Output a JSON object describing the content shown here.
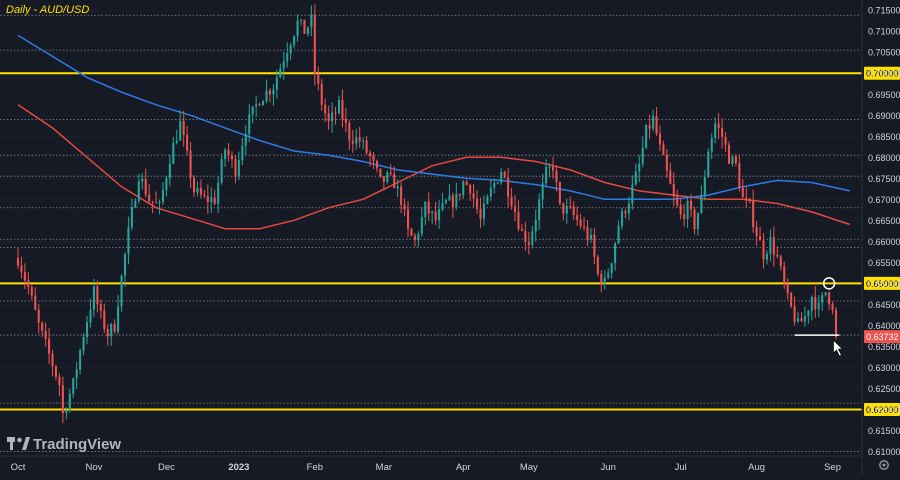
{
  "chart_data": {
    "type": "candlestick",
    "title": "Daily - AUD/USD",
    "symbol": "AUD/USD",
    "interval": "Daily",
    "watermark": "TradingView",
    "ylim": [
      0.6075,
      0.716
    ],
    "y_ticks": [
      "0.71500",
      "0.71000",
      "0.70500",
      "0.70000",
      "0.69500",
      "0.69000",
      "0.68500",
      "0.68000",
      "0.67500",
      "0.67000",
      "0.66500",
      "0.66000",
      "0.65500",
      "0.65000",
      "0.64500",
      "0.64000",
      "0.63500",
      "0.63000",
      "0.62500",
      "0.62000",
      "0.61500",
      "0.61000"
    ],
    "x_labels": [
      {
        "label": "Oct",
        "t": 0
      },
      {
        "label": "Nov",
        "t": 22
      },
      {
        "label": "Dec",
        "t": 43
      },
      {
        "label": "2023",
        "t": 64
      },
      {
        "label": "Feb",
        "t": 86
      },
      {
        "label": "Mar",
        "t": 106
      },
      {
        "label": "Apr",
        "t": 129
      },
      {
        "label": "May",
        "t": 148
      },
      {
        "label": "Jun",
        "t": 171
      },
      {
        "label": "Jul",
        "t": 192
      },
      {
        "label": "Aug",
        "t": 214
      },
      {
        "label": "Sep",
        "t": 236
      }
    ],
    "last_price": "0.63732",
    "key_levels": [
      {
        "price": 0.7,
        "label": "0.70000",
        "style": "major"
      },
      {
        "price": 0.65,
        "label": "0.65000",
        "style": "major"
      },
      {
        "price": 0.62,
        "label": "0.62000",
        "style": "major"
      },
      {
        "price": 0.7138,
        "style": "minor"
      },
      {
        "price": 0.7055,
        "style": "minor"
      },
      {
        "price": 0.689,
        "style": "minor"
      },
      {
        "price": 0.6805,
        "style": "minor"
      },
      {
        "price": 0.6755,
        "style": "minor"
      },
      {
        "price": 0.668,
        "style": "minor"
      },
      {
        "price": 0.6605,
        "style": "minor"
      },
      {
        "price": 0.6585,
        "style": "minor"
      },
      {
        "price": 0.6458,
        "style": "minor"
      },
      {
        "price": 0.6377,
        "style": "minor"
      },
      {
        "price": 0.6215,
        "style": "minor"
      },
      {
        "price": 0.61,
        "style": "minor"
      }
    ],
    "anchors": [
      {
        "t": 0,
        "p": 0.656
      },
      {
        "t": 3,
        "p": 0.649
      },
      {
        "t": 6,
        "p": 0.64
      },
      {
        "t": 9,
        "p": 0.633
      },
      {
        "t": 12,
        "p": 0.626
      },
      {
        "t": 13,
        "p": 0.619
      },
      {
        "t": 16,
        "p": 0.626
      },
      {
        "t": 19,
        "p": 0.638
      },
      {
        "t": 22,
        "p": 0.648
      },
      {
        "t": 24,
        "p": 0.642
      },
      {
        "t": 26,
        "p": 0.638
      },
      {
        "t": 28,
        "p": 0.64
      },
      {
        "t": 29,
        "p": 0.646
      },
      {
        "t": 32,
        "p": 0.662
      },
      {
        "t": 35,
        "p": 0.676
      },
      {
        "t": 38,
        "p": 0.67
      },
      {
        "t": 41,
        "p": 0.668
      },
      {
        "t": 44,
        "p": 0.68
      },
      {
        "t": 47,
        "p": 0.688
      },
      {
        "t": 51,
        "p": 0.672
      },
      {
        "t": 54,
        "p": 0.67
      },
      {
        "t": 57,
        "p": 0.67
      },
      {
        "t": 60,
        "p": 0.682
      },
      {
        "t": 63,
        "p": 0.677
      },
      {
        "t": 66,
        "p": 0.687
      },
      {
        "t": 70,
        "p": 0.694
      },
      {
        "t": 74,
        "p": 0.697
      },
      {
        "t": 78,
        "p": 0.706
      },
      {
        "t": 81,
        "p": 0.712
      },
      {
        "t": 83,
        "p": 0.71
      },
      {
        "t": 85,
        "p": 0.7125
      },
      {
        "t": 86,
        "p": 0.7
      },
      {
        "t": 88,
        "p": 0.693
      },
      {
        "t": 90,
        "p": 0.688
      },
      {
        "t": 93,
        "p": 0.692
      },
      {
        "t": 96,
        "p": 0.685
      },
      {
        "t": 99,
        "p": 0.684
      },
      {
        "t": 102,
        "p": 0.68
      },
      {
        "t": 105,
        "p": 0.674
      },
      {
        "t": 107,
        "p": 0.675
      },
      {
        "t": 109,
        "p": 0.674
      },
      {
        "t": 111,
        "p": 0.67
      },
      {
        "t": 113,
        "p": 0.662
      },
      {
        "t": 115,
        "p": 0.66
      },
      {
        "t": 118,
        "p": 0.668
      },
      {
        "t": 121,
        "p": 0.665
      },
      {
        "t": 124,
        "p": 0.669
      },
      {
        "t": 127,
        "p": 0.67
      },
      {
        "t": 129,
        "p": 0.674
      },
      {
        "t": 131,
        "p": 0.673
      },
      {
        "t": 134,
        "p": 0.665
      },
      {
        "t": 137,
        "p": 0.672
      },
      {
        "t": 140,
        "p": 0.677
      },
      {
        "t": 143,
        "p": 0.67
      },
      {
        "t": 146,
        "p": 0.662
      },
      {
        "t": 148,
        "p": 0.66
      },
      {
        "t": 150,
        "p": 0.666
      },
      {
        "t": 153,
        "p": 0.676
      },
      {
        "t": 155,
        "p": 0.678
      },
      {
        "t": 157,
        "p": 0.668
      },
      {
        "t": 160,
        "p": 0.667
      },
      {
        "t": 163,
        "p": 0.664
      },
      {
        "t": 166,
        "p": 0.66
      },
      {
        "t": 168,
        "p": 0.652
      },
      {
        "t": 170,
        "p": 0.65
      },
      {
        "t": 172,
        "p": 0.656
      },
      {
        "t": 174,
        "p": 0.664
      },
      {
        "t": 177,
        "p": 0.67
      },
      {
        "t": 180,
        "p": 0.678
      },
      {
        "t": 182,
        "p": 0.686
      },
      {
        "t": 184,
        "p": 0.689
      },
      {
        "t": 186,
        "p": 0.682
      },
      {
        "t": 188,
        "p": 0.676
      },
      {
        "t": 190,
        "p": 0.67
      },
      {
        "t": 192,
        "p": 0.666
      },
      {
        "t": 194,
        "p": 0.668
      },
      {
        "t": 196,
        "p": 0.664
      },
      {
        "t": 198,
        "p": 0.67
      },
      {
        "t": 200,
        "p": 0.682
      },
      {
        "t": 202,
        "p": 0.688
      },
      {
        "t": 204,
        "p": 0.685
      },
      {
        "t": 206,
        "p": 0.68
      },
      {
        "t": 208,
        "p": 0.678
      },
      {
        "t": 210,
        "p": 0.67
      },
      {
        "t": 212,
        "p": 0.668
      },
      {
        "t": 214,
        "p": 0.662
      },
      {
        "t": 216,
        "p": 0.657
      },
      {
        "t": 218,
        "p": 0.66
      },
      {
        "t": 220,
        "p": 0.656
      },
      {
        "t": 223,
        "p": 0.646
      },
      {
        "t": 226,
        "p": 0.64
      },
      {
        "t": 228,
        "p": 0.642
      },
      {
        "t": 230,
        "p": 0.647
      },
      {
        "t": 232,
        "p": 0.644
      },
      {
        "t": 234,
        "p": 0.648
      },
      {
        "t": 236,
        "p": 0.645
      },
      {
        "t": 237,
        "p": 0.6373
      }
    ],
    "ma_red": [
      {
        "t": 0,
        "p": 0.6925
      },
      {
        "t": 10,
        "p": 0.687
      },
      {
        "t": 20,
        "p": 0.68
      },
      {
        "t": 30,
        "p": 0.673
      },
      {
        "t": 40,
        "p": 0.668
      },
      {
        "t": 50,
        "p": 0.6655
      },
      {
        "t": 60,
        "p": 0.663
      },
      {
        "t": 70,
        "p": 0.663
      },
      {
        "t": 80,
        "p": 0.665
      },
      {
        "t": 90,
        "p": 0.668
      },
      {
        "t": 100,
        "p": 0.67
      },
      {
        "t": 110,
        "p": 0.674
      },
      {
        "t": 120,
        "p": 0.678
      },
      {
        "t": 130,
        "p": 0.68
      },
      {
        "t": 140,
        "p": 0.68
      },
      {
        "t": 150,
        "p": 0.679
      },
      {
        "t": 160,
        "p": 0.677
      },
      {
        "t": 170,
        "p": 0.674
      },
      {
        "t": 180,
        "p": 0.672
      },
      {
        "t": 190,
        "p": 0.671
      },
      {
        "t": 200,
        "p": 0.67
      },
      {
        "t": 210,
        "p": 0.67
      },
      {
        "t": 220,
        "p": 0.669
      },
      {
        "t": 230,
        "p": 0.667
      },
      {
        "t": 241,
        "p": 0.664
      }
    ],
    "ma_blue": [
      {
        "t": 0,
        "p": 0.709
      },
      {
        "t": 10,
        "p": 0.704
      },
      {
        "t": 20,
        "p": 0.699
      },
      {
        "t": 30,
        "p": 0.6955
      },
      {
        "t": 40,
        "p": 0.6925
      },
      {
        "t": 50,
        "p": 0.69
      },
      {
        "t": 60,
        "p": 0.687
      },
      {
        "t": 70,
        "p": 0.684
      },
      {
        "t": 80,
        "p": 0.6815
      },
      {
        "t": 90,
        "p": 0.6805
      },
      {
        "t": 100,
        "p": 0.679
      },
      {
        "t": 110,
        "p": 0.677
      },
      {
        "t": 120,
        "p": 0.676
      },
      {
        "t": 130,
        "p": 0.675
      },
      {
        "t": 140,
        "p": 0.6745
      },
      {
        "t": 150,
        "p": 0.6735
      },
      {
        "t": 160,
        "p": 0.672
      },
      {
        "t": 170,
        "p": 0.67
      },
      {
        "t": 180,
        "p": 0.67
      },
      {
        "t": 190,
        "p": 0.67
      },
      {
        "t": 200,
        "p": 0.671
      },
      {
        "t": 210,
        "p": 0.673
      },
      {
        "t": 220,
        "p": 0.6745
      },
      {
        "t": 230,
        "p": 0.674
      },
      {
        "t": 241,
        "p": 0.672
      }
    ],
    "support_line": {
      "t0": 225,
      "t1": 238,
      "price": 0.6377
    },
    "circle_marker": {
      "t": 235,
      "price": 0.65
    },
    "colors": {
      "background": "#161a25",
      "grid": "#2a2e39",
      "up": "#26a69a",
      "down": "#ef5350",
      "ma_red": "#e24b40",
      "ma_blue": "#2d7be6",
      "level": "#ffe100",
      "minor": "#9598a1",
      "axis_text": "#d1d4dc",
      "white": "#ffffff",
      "last_tag": "#ef5350"
    }
  },
  "ui": {
    "settings_icon": "gear-icon"
  }
}
